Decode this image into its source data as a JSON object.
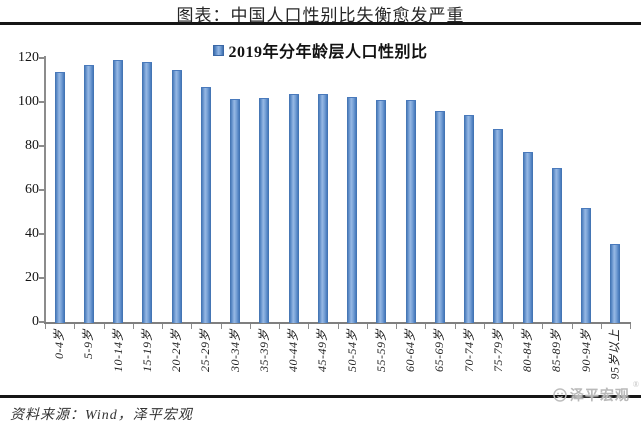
{
  "header": {
    "title": "图表：中国人口性别比失衡愈发严重"
  },
  "legend": {
    "label": "2019年分年龄层人口性别比"
  },
  "footer": {
    "source": "资料来源：Wind，泽平宏观",
    "watermark": "泽平宏观",
    "watermark_mark": "®"
  },
  "colors": {
    "bar_main": "#4F81BD",
    "bar_light": "#96B8E4",
    "bar_dark": "#3E6FAE",
    "axis": "#8C8C8C",
    "rule": "#161616",
    "watermark": "#B9B9B9"
  },
  "chart_data": {
    "type": "bar",
    "title": "2019年分年龄层人口性别比",
    "categories": [
      "0-4岁",
      "5-9岁",
      "10-14岁",
      "15-19岁",
      "20-24岁",
      "25-29岁",
      "30-34岁",
      "35-39岁",
      "40-44岁",
      "45-49岁",
      "50-54岁",
      "55-59岁",
      "60-64岁",
      "65-69岁",
      "70-74岁",
      "75-79岁",
      "80-84岁",
      "85-89岁",
      "90-94岁",
      "95岁以上"
    ],
    "values": [
      113.6,
      116.9,
      119.1,
      118.4,
      114.6,
      106.7,
      101.3,
      101.9,
      103.6,
      103.5,
      102.2,
      101.1,
      100.9,
      96.0,
      94.1,
      87.7,
      77.5,
      70.0,
      51.6,
      35.3
    ],
    "xlabel": "",
    "ylabel": "",
    "ylim": [
      0,
      120
    ],
    "yticks": [
      0,
      20,
      40,
      60,
      80,
      100,
      120
    ],
    "grid": false,
    "legend_position": "top-center"
  }
}
